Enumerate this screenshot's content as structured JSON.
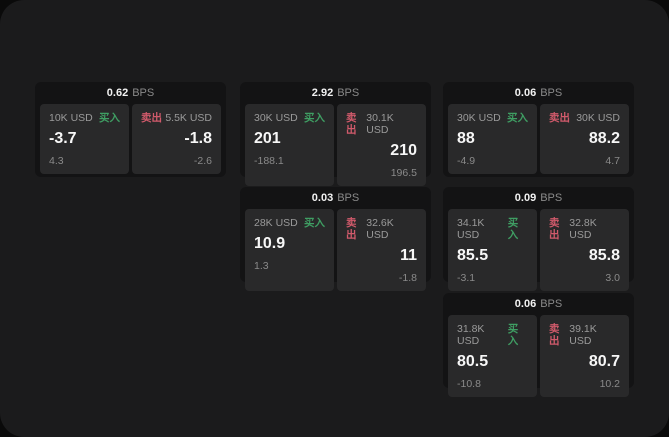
{
  "labels": {
    "bps_unit": "BPS",
    "buy": "买入",
    "sell": "卖出"
  },
  "colors": {
    "buy_green": "#3f9e63",
    "sell_red": "#d15a6b",
    "panel_background": "#1b1b1c",
    "card_background": "#131314",
    "tile_background": "#29292a"
  },
  "cards": [
    {
      "bps": "0.62",
      "buy": {
        "amount": "10K USD",
        "value": "-3.7",
        "sub": "4.3"
      },
      "sell": {
        "amount": "5.5K USD",
        "value": "-1.8",
        "sub": "-2.6"
      }
    },
    {
      "bps": "2.92",
      "buy": {
        "amount": "30K USD",
        "value": "201",
        "sub": "-188.1"
      },
      "sell": {
        "amount": "30.1K USD",
        "value": "210",
        "sub": "196.5"
      }
    },
    {
      "bps": "0.06",
      "buy": {
        "amount": "30K USD",
        "value": "88",
        "sub": "-4.9"
      },
      "sell": {
        "amount": "30K USD",
        "value": "88.2",
        "sub": "4.7"
      }
    },
    {
      "bps": "0.03",
      "buy": {
        "amount": "28K USD",
        "value": "10.9",
        "sub": "1.3"
      },
      "sell": {
        "amount": "32.6K USD",
        "value": "11",
        "sub": "-1.8"
      }
    },
    {
      "bps": "0.09",
      "buy": {
        "amount": "34.1K USD",
        "value": "85.5",
        "sub": "-3.1"
      },
      "sell": {
        "amount": "32.8K USD",
        "value": "85.8",
        "sub": "3.0"
      }
    },
    {
      "bps": "0.06",
      "buy": {
        "amount": "31.8K USD",
        "value": "80.5",
        "sub": "-10.8"
      },
      "sell": {
        "amount": "39.1K USD",
        "value": "80.7",
        "sub": "10.2"
      }
    }
  ]
}
